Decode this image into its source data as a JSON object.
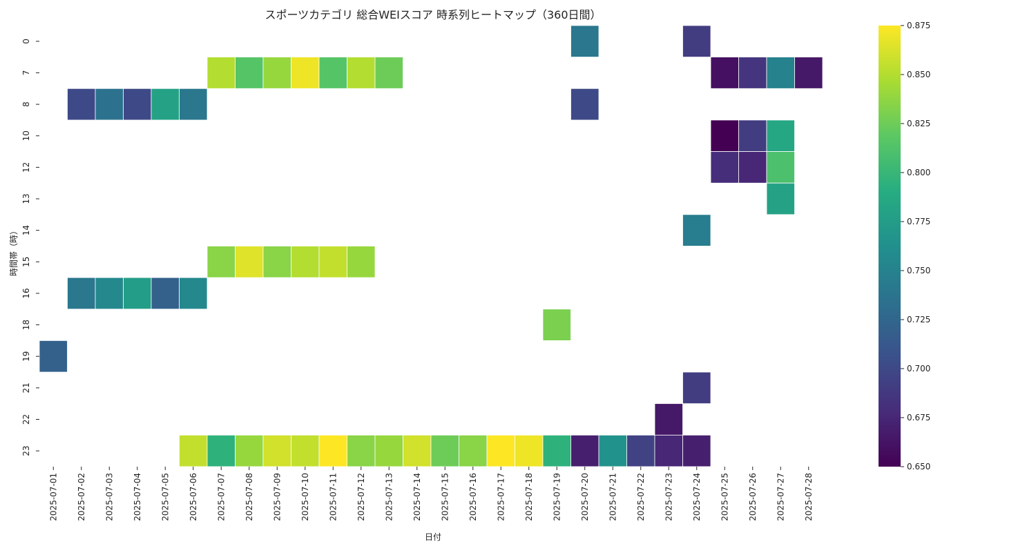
{
  "chart_data": {
    "type": "heatmap",
    "title": "スポーツカテゴリ 総合WEIスコア 時系列ヒートマップ（360日間）",
    "xlabel": "日付",
    "ylabel": "時間帯（時）",
    "colormap": "viridis",
    "colorbar": {
      "min": 0.65,
      "max": 0.875,
      "ticks": [
        "0.650",
        "0.675",
        "0.700",
        "0.725",
        "0.750",
        "0.775",
        "0.800",
        "0.825",
        "0.850",
        "0.875"
      ]
    },
    "x_categories": [
      "2025-07-01",
      "2025-07-02",
      "2025-07-03",
      "2025-07-04",
      "2025-07-05",
      "2025-07-06",
      "2025-07-07",
      "2025-07-08",
      "2025-07-09",
      "2025-07-10",
      "2025-07-11",
      "2025-07-12",
      "2025-07-13",
      "2025-07-14",
      "2025-07-15",
      "2025-07-16",
      "2025-07-17",
      "2025-07-18",
      "2025-07-19",
      "2025-07-20",
      "2025-07-21",
      "2025-07-22",
      "2025-07-23",
      "2025-07-24",
      "2025-07-25",
      "2025-07-26",
      "2025-07-27",
      "2025-07-28"
    ],
    "y_categories": [
      "0",
      "7",
      "8",
      "10",
      "12",
      "13",
      "14",
      "15",
      "16",
      "18",
      "19",
      "21",
      "22",
      "23"
    ],
    "values": [
      [
        null,
        null,
        null,
        null,
        null,
        null,
        null,
        null,
        null,
        null,
        null,
        null,
        null,
        null,
        null,
        null,
        null,
        null,
        null,
        0.74,
        null,
        null,
        null,
        0.69,
        null,
        null,
        null,
        null
      ],
      [
        null,
        null,
        null,
        null,
        null,
        null,
        0.85,
        0.815,
        0.84,
        0.87,
        0.815,
        0.85,
        0.825,
        null,
        null,
        null,
        null,
        null,
        null,
        null,
        null,
        null,
        null,
        null,
        0.66,
        0.685,
        0.75,
        0.665
      ],
      [
        null,
        0.7,
        0.735,
        0.7,
        0.78,
        0.74,
        null,
        null,
        null,
        null,
        null,
        null,
        null,
        null,
        null,
        null,
        null,
        null,
        null,
        0.7,
        null,
        null,
        null,
        null,
        null,
        null,
        null,
        null
      ],
      [
        null,
        null,
        null,
        null,
        null,
        null,
        null,
        null,
        null,
        null,
        null,
        null,
        null,
        null,
        null,
        null,
        null,
        null,
        null,
        null,
        null,
        null,
        null,
        null,
        0.65,
        0.69,
        0.785,
        null
      ],
      [
        null,
        null,
        null,
        null,
        null,
        null,
        null,
        null,
        null,
        null,
        null,
        null,
        null,
        null,
        null,
        null,
        null,
        null,
        null,
        null,
        null,
        null,
        null,
        null,
        0.68,
        0.675,
        0.81,
        null
      ],
      [
        null,
        null,
        null,
        null,
        null,
        null,
        null,
        null,
        null,
        null,
        null,
        null,
        null,
        null,
        null,
        null,
        null,
        null,
        null,
        null,
        null,
        null,
        null,
        null,
        null,
        null,
        0.78,
        null
      ],
      [
        null,
        null,
        null,
        null,
        null,
        null,
        null,
        null,
        null,
        null,
        null,
        null,
        null,
        null,
        null,
        null,
        null,
        null,
        null,
        null,
        null,
        null,
        null,
        0.745,
        null,
        null,
        null,
        null
      ],
      [
        null,
        null,
        null,
        null,
        null,
        null,
        0.835,
        0.865,
        0.835,
        0.85,
        0.855,
        0.84,
        null,
        null,
        null,
        null,
        null,
        null,
        null,
        null,
        null,
        null,
        null,
        null,
        null,
        null,
        null,
        null
      ],
      [
        null,
        0.74,
        0.755,
        0.775,
        0.72,
        0.755,
        null,
        null,
        null,
        null,
        null,
        null,
        null,
        null,
        null,
        null,
        null,
        null,
        null,
        null,
        null,
        null,
        null,
        null,
        null,
        null,
        null,
        null
      ],
      [
        null,
        null,
        null,
        null,
        null,
        null,
        null,
        null,
        null,
        null,
        null,
        null,
        null,
        null,
        null,
        null,
        null,
        null,
        0.83,
        null,
        null,
        null,
        null,
        null,
        null,
        null,
        null,
        null
      ],
      [
        0.72,
        null,
        null,
        null,
        null,
        null,
        null,
        null,
        null,
        null,
        null,
        null,
        null,
        null,
        null,
        null,
        null,
        null,
        null,
        null,
        null,
        null,
        null,
        null,
        null,
        null,
        null,
        null
      ],
      [
        null,
        null,
        null,
        null,
        null,
        null,
        null,
        null,
        null,
        null,
        null,
        null,
        null,
        null,
        null,
        null,
        null,
        null,
        null,
        null,
        null,
        null,
        null,
        0.69,
        null,
        null,
        null,
        null
      ],
      [
        null,
        null,
        null,
        null,
        null,
        null,
        null,
        null,
        null,
        null,
        null,
        null,
        null,
        null,
        null,
        null,
        null,
        null,
        null,
        null,
        null,
        null,
        0.665,
        null,
        null,
        null,
        null,
        null
      ],
      [
        null,
        null,
        null,
        null,
        null,
        0.855,
        0.795,
        0.84,
        0.86,
        0.855,
        0.875,
        0.835,
        0.84,
        0.86,
        0.825,
        0.835,
        0.875,
        0.87,
        0.795,
        0.67,
        0.765,
        0.695,
        0.675,
        0.67,
        null,
        null,
        null,
        null
      ]
    ]
  }
}
